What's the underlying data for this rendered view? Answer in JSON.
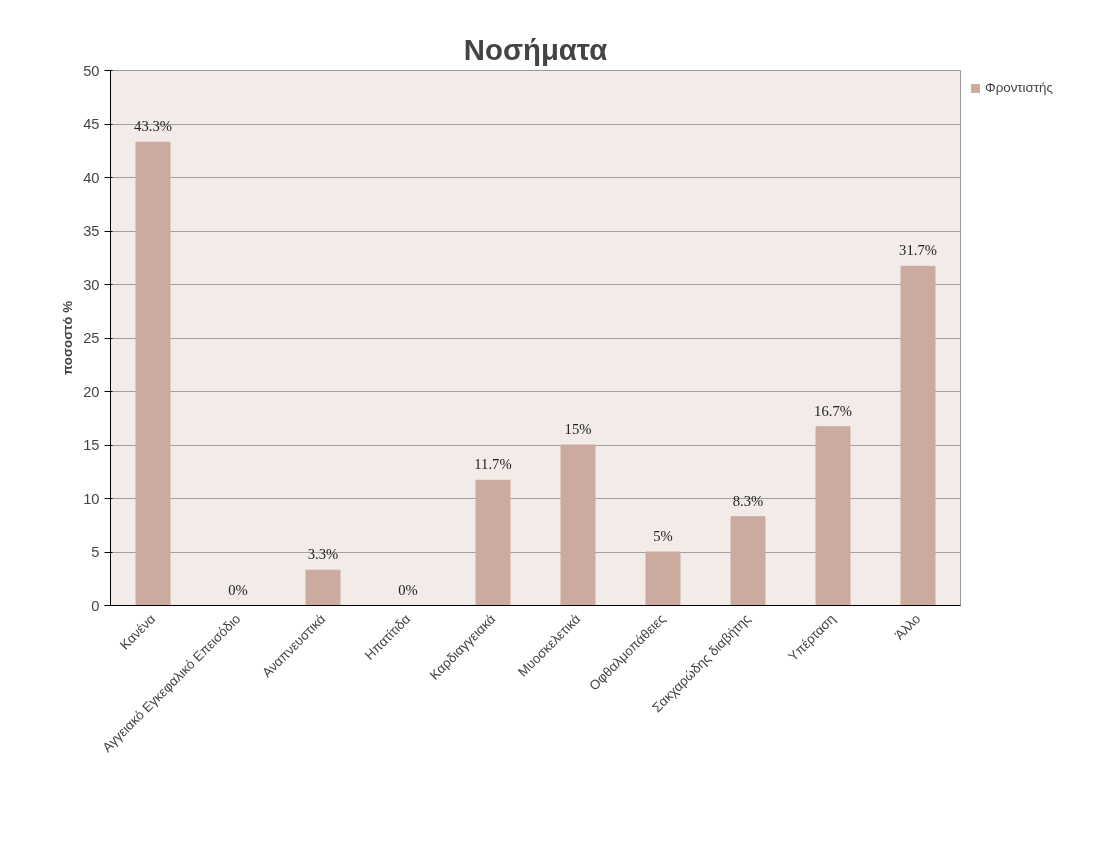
{
  "chart_data": {
    "type": "bar",
    "title": "Νοσήματα",
    "ylabel": "ποσοστό %",
    "categories": [
      "Κανένα",
      "Αγγειακό Εγκεφαλικό Επεισόδιο",
      "Αναπνευστικά",
      "Ηπατίτιδα",
      "Καρδιαγγειακά",
      "Μυοσκελετικά",
      "Οφθαλμοπάθειες",
      "Σακχαρώδης διαβήτης",
      "Υπέρταση",
      "Άλλο"
    ],
    "series": [
      {
        "name": "Φροντιστής",
        "color": "#cbaaa0",
        "values": [
          43.3,
          0,
          3.3,
          0,
          11.7,
          15,
          5,
          8.3,
          16.7,
          31.7
        ],
        "value_labels": [
          "43.3%",
          "0%",
          "3.3%",
          "0%",
          "11.7%",
          "15%",
          "5%",
          "8.3%",
          "16.7%",
          "31.7%"
        ]
      }
    ],
    "ylim": [
      0,
      50
    ],
    "yticks": [
      0,
      5,
      10,
      15,
      20,
      25,
      30,
      35,
      40,
      45,
      50
    ],
    "grid": "y",
    "legend": "top right"
  }
}
